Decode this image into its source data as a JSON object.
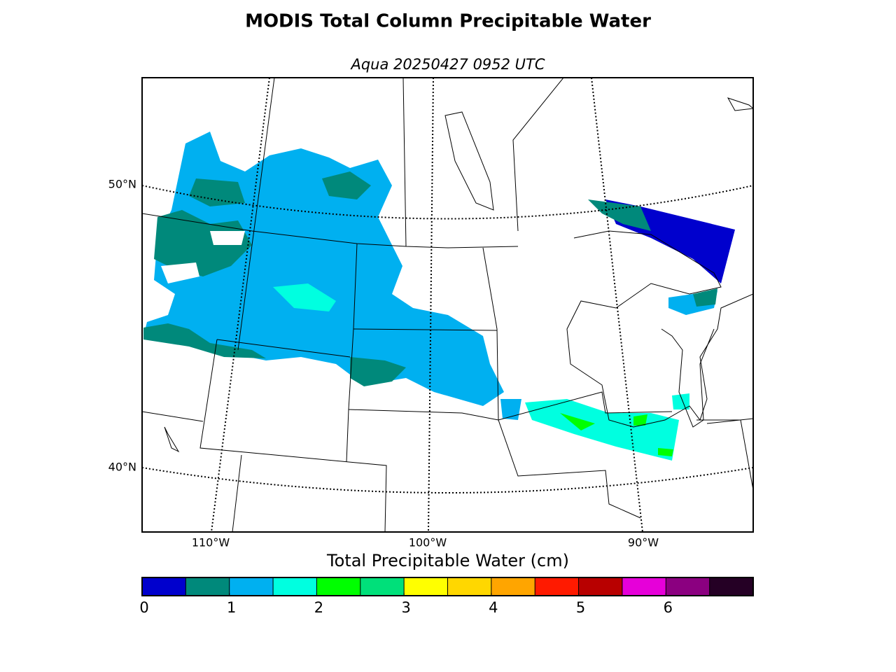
{
  "title": "MODIS Total Column Precipitable Water",
  "subtitle": "Aqua 20250427 0952 UTC",
  "map": {
    "lat_labels": [
      "50°N",
      "40°N"
    ],
    "lon_labels": [
      "110°W",
      "100°W",
      "90°W"
    ]
  },
  "colorbar": {
    "label": "Total Precipitable Water (cm)",
    "range": [
      0,
      7
    ],
    "ticks": [
      0,
      1,
      2,
      3,
      4,
      5,
      6
    ],
    "colors": [
      "#0000cd",
      "#00897b",
      "#00b0f0",
      "#00ffe0",
      "#00ff00",
      "#00e07a",
      "#ffff00",
      "#ffd700",
      "#ffa500",
      "#ff1a00",
      "#b80000",
      "#e600d9",
      "#8b0080",
      "#250025"
    ]
  }
}
